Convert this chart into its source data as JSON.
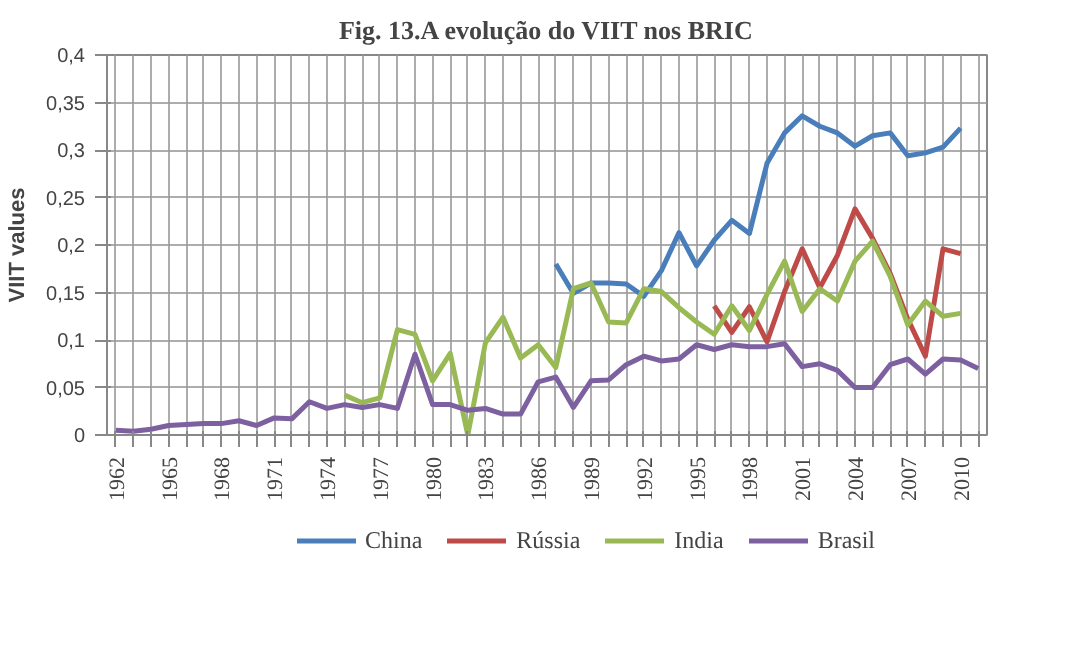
{
  "chart_data": {
    "type": "line",
    "title": "Fig. 13.A evolução do VIIT nos BRIC",
    "ylabel": "VIIT values",
    "xlim": [
      1961.5,
      2011.5
    ],
    "xticks": [
      1962,
      {
        "value": 1963,
        "label": null
      },
      {
        "value": 1964,
        "label": null
      },
      1965,
      {
        "value": 1966,
        "label": null
      },
      {
        "value": 1967,
        "label": null
      },
      1968,
      {
        "value": 1969,
        "label": null
      },
      {
        "value": 1970,
        "label": null
      },
      1971,
      {
        "value": 1972,
        "label": null
      },
      {
        "value": 1973,
        "label": null
      },
      1974,
      {
        "value": 1975,
        "label": null
      },
      {
        "value": 1976,
        "label": null
      },
      1977,
      {
        "value": 1978,
        "label": null
      },
      {
        "value": 1979,
        "label": null
      },
      1980,
      {
        "value": 1981,
        "label": null
      },
      {
        "value": 1982,
        "label": null
      },
      1983,
      {
        "value": 1984,
        "label": null
      },
      {
        "value": 1985,
        "label": null
      },
      1986,
      {
        "value": 1987,
        "label": null
      },
      {
        "value": 1988,
        "label": null
      },
      1989,
      {
        "value": 1990,
        "label": null
      },
      {
        "value": 1991,
        "label": null
      },
      1992,
      {
        "value": 1993,
        "label": null
      },
      {
        "value": 1994,
        "label": null
      },
      1995,
      {
        "value": 1996,
        "label": null
      },
      {
        "value": 1997,
        "label": null
      },
      1998,
      {
        "value": 1999,
        "label": null
      },
      {
        "value": 2000,
        "label": null
      },
      2001,
      {
        "value": 2002,
        "label": null
      },
      {
        "value": 2003,
        "label": null
      },
      2004,
      {
        "value": 2005,
        "label": null
      },
      {
        "value": 2006,
        "label": null
      },
      2007,
      {
        "value": 2008,
        "label": null
      },
      {
        "value": 2009,
        "label": null
      },
      2010,
      {
        "value": 2011,
        "label": null
      }
    ],
    "ylim": [
      0,
      0.4
    ],
    "yticks": [
      0,
      {
        "value": 0.05,
        "label": "0,05"
      },
      {
        "value": 0.1,
        "label": "0,1"
      },
      {
        "value": 0.15,
        "label": "0,15"
      },
      {
        "value": 0.2,
        "label": "0,2"
      },
      {
        "value": 0.25,
        "label": "0,25"
      },
      {
        "value": 0.3,
        "label": "0,3"
      },
      {
        "value": 0.35,
        "label": "0,35"
      },
      {
        "value": 0.4,
        "label": "0,4"
      }
    ],
    "grid": true,
    "legend": "bottom",
    "marker": "none",
    "line_style": "solid",
    "series": [
      {
        "name": "China",
        "color": "#4a7ebb",
        "x": [
          1987,
          1988,
          1989,
          1990,
          1991,
          1992,
          1993,
          1994,
          1995,
          1996,
          1997,
          1998,
          1999,
          2000,
          2001,
          2002,
          2003,
          2004,
          2005,
          2006,
          2007,
          2008,
          2009,
          2010
        ],
        "values": [
          0.18,
          0.149,
          0.16,
          0.16,
          0.159,
          0.146,
          0.173,
          0.213,
          0.178,
          0.205,
          0.226,
          0.212,
          0.286,
          0.318,
          0.336,
          0.325,
          0.318,
          0.304,
          0.315,
          0.318,
          0.294,
          0.297,
          0.303,
          0.323
        ]
      },
      {
        "name": "Rússia",
        "color": "#be4b48",
        "x": [
          1996,
          1997,
          1998,
          1999,
          2000,
          2001,
          2002,
          2003,
          2004,
          2005,
          2006,
          2007,
          2008,
          2009,
          2010
        ],
        "values": [
          0.136,
          0.108,
          0.135,
          0.098,
          0.151,
          0.196,
          0.155,
          0.189,
          0.238,
          0.207,
          0.17,
          0.122,
          0.083,
          0.196,
          0.191
        ]
      },
      {
        "name": "India",
        "color": "#98b954",
        "x": [
          1975,
          1976,
          1977,
          1978,
          1979,
          1980,
          1981,
          1982,
          1983,
          1984,
          1985,
          1986,
          1987,
          1988,
          1989,
          1990,
          1991,
          1992,
          1993,
          1994,
          1995,
          1996,
          1997,
          1998,
          1999,
          2000,
          2001,
          2002,
          2003,
          2004,
          2005,
          2006,
          2007,
          2008,
          2009,
          2010
        ],
        "values": [
          0.042,
          0.034,
          0.039,
          0.111,
          0.106,
          0.057,
          0.086,
          0.0,
          0.097,
          0.124,
          0.081,
          0.095,
          0.071,
          0.154,
          0.16,
          0.119,
          0.118,
          0.154,
          0.151,
          0.134,
          0.119,
          0.106,
          0.136,
          0.11,
          0.148,
          0.183,
          0.13,
          0.154,
          0.141,
          0.183,
          0.204,
          0.167,
          0.116,
          0.141,
          0.125,
          0.128
        ]
      },
      {
        "name": "Brasil",
        "color": "#7d60a0",
        "x": [
          1962,
          1963,
          1964,
          1965,
          1966,
          1967,
          1968,
          1969,
          1970,
          1971,
          1972,
          1973,
          1974,
          1975,
          1976,
          1977,
          1978,
          1979,
          1980,
          1981,
          1982,
          1983,
          1984,
          1985,
          1986,
          1987,
          1988,
          1989,
          1990,
          1991,
          1992,
          1993,
          1994,
          1995,
          1996,
          1997,
          1998,
          1999,
          2000,
          2001,
          2002,
          2003,
          2004,
          2005,
          2006,
          2007,
          2008,
          2009,
          2010,
          2011
        ],
        "values": [
          0.005,
          0.004,
          0.006,
          0.01,
          0.011,
          0.012,
          0.012,
          0.015,
          0.01,
          0.018,
          0.017,
          0.035,
          0.028,
          0.032,
          0.029,
          0.032,
          0.028,
          0.085,
          0.032,
          0.032,
          0.026,
          0.028,
          0.022,
          0.022,
          0.056,
          0.061,
          0.029,
          0.057,
          0.058,
          0.074,
          0.083,
          0.078,
          0.08,
          0.095,
          0.09,
          0.095,
          0.093,
          0.093,
          0.096,
          0.072,
          0.075,
          0.068,
          0.05,
          0.05,
          0.074,
          0.08,
          0.064,
          0.08,
          0.079,
          0.07
        ]
      }
    ]
  }
}
